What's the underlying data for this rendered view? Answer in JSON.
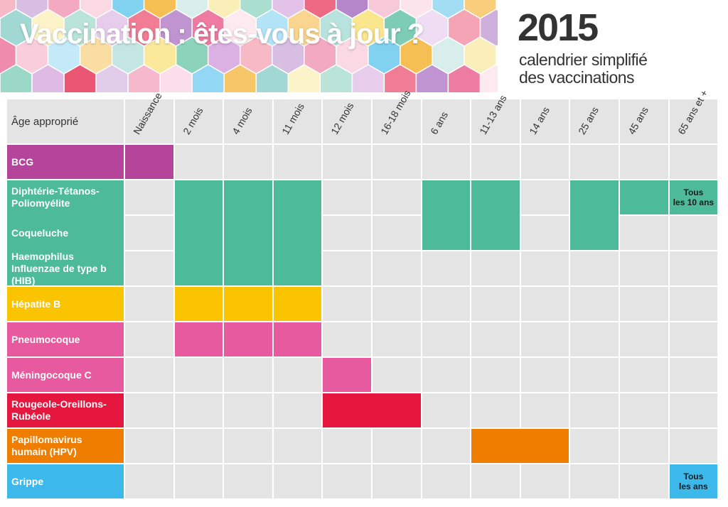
{
  "header": {
    "title": "Vaccination : êtes-vous à jour ?",
    "year": "2015",
    "subtitle_line1": "calendrier simplifié",
    "subtitle_line2": "des vaccinations"
  },
  "colors": {
    "grid": "#e4e4e4",
    "BCG": "#b5449b",
    "dtp": "#4dbb98",
    "hepb": "#fbc400",
    "pneumo": "#e75a9f",
    "ror": "#e5173f",
    "hpv": "#ee7d00",
    "grippe": "#3cb9ea",
    "banner": [
      "#e84a7f",
      "#f3a712",
      "#4dbb98",
      "#9b59b6",
      "#3cb9ea",
      "#f7d94c",
      "#e5173f",
      "#f8bbd0",
      "#80cbc4",
      "#ce93d8"
    ]
  },
  "chart_data": {
    "type": "table",
    "corner_label": "Âge approprié",
    "columns": [
      "Naissance",
      "2 mois",
      "4 mois",
      "11 mois",
      "12 mois",
      "16-18 mois",
      "6 ans",
      "11-13 ans",
      "14 ans",
      "25 ans",
      "45 ans",
      "65 ans et +"
    ],
    "rows": [
      {
        "label": "BCG",
        "color": "#b5449b"
      },
      {
        "label": "Diphtérie-Tétanos-Poliomyélite",
        "color": "#4dbb98"
      },
      {
        "label": "Coqueluche",
        "color": "#4dbb98"
      },
      {
        "label": "Haemophilus Influenzae de type b (HIB)",
        "color": "#4dbb98"
      },
      {
        "label": "Hépatite B",
        "color": "#fbc400"
      },
      {
        "label": "Pneumocoque",
        "color": "#e75a9f"
      },
      {
        "label": "Méningocoque C",
        "color": "#e75a9f"
      },
      {
        "label": "Rougeole-Oreillons-Rubéole",
        "color": "#e5173f"
      },
      {
        "label": "Papillomavirus humain (HPV)",
        "color": "#ee7d00"
      },
      {
        "label": "Grippe",
        "color": "#3cb9ea"
      }
    ],
    "row_labels_display": [
      [
        "BCG"
      ],
      [
        "Diphtérie-Tétanos-",
        "Poliomyélite"
      ],
      [
        "Coqueluche"
      ],
      [
        "Haemophilus",
        "Influenzae de type b (HIB)"
      ],
      [
        "Hépatite B"
      ],
      [
        "Pneumocoque"
      ],
      [
        "Méningocoque C"
      ],
      [
        "Rougeole-Oreillons-",
        "Rubéole"
      ],
      [
        "Papillomavirus",
        "humain (HPV)"
      ],
      [
        "Grippe"
      ]
    ],
    "schedule": [
      {
        "vaccine": "BCG",
        "columns": [
          "Naissance"
        ]
      },
      {
        "vaccine": "Diphtérie-Tétanos-Poliomyélite",
        "columns": [
          "2 mois",
          "4 mois",
          "11 mois",
          "6 ans",
          "11-13 ans",
          "25 ans",
          "45 ans",
          "65 ans et +"
        ]
      },
      {
        "vaccine": "Coqueluche",
        "columns": [
          "2 mois",
          "4 mois",
          "11 mois",
          "6 ans",
          "11-13 ans",
          "25 ans"
        ]
      },
      {
        "vaccine": "Haemophilus Influenzae de type b (HIB)",
        "columns": [
          "2 mois",
          "4 mois",
          "11 mois"
        ]
      },
      {
        "vaccine": "Hépatite B",
        "columns": [
          "2 mois",
          "4 mois",
          "11 mois"
        ]
      },
      {
        "vaccine": "Pneumocoque",
        "columns": [
          "2 mois",
          "4 mois",
          "11 mois"
        ]
      },
      {
        "vaccine": "Méningocoque C",
        "columns": [
          "12 mois"
        ]
      },
      {
        "vaccine": "Rougeole-Oreillons-Rubéole",
        "columns": [
          "12 mois",
          "16-18 mois"
        ]
      },
      {
        "vaccine": "Papillomavirus humain (HPV)",
        "columns": [
          "11-13 ans",
          "14 ans"
        ]
      },
      {
        "vaccine": "Grippe",
        "columns": [
          "65 ans et +"
        ]
      }
    ],
    "annotations": [
      {
        "vaccine": "Diphtérie-Tétanos-Poliomyélite",
        "column": "65 ans et +",
        "lines": [
          "Tous",
          "les 10 ans"
        ]
      },
      {
        "vaccine": "Grippe",
        "column": "65 ans et +",
        "lines": [
          "Tous",
          "les ans"
        ]
      }
    ]
  }
}
